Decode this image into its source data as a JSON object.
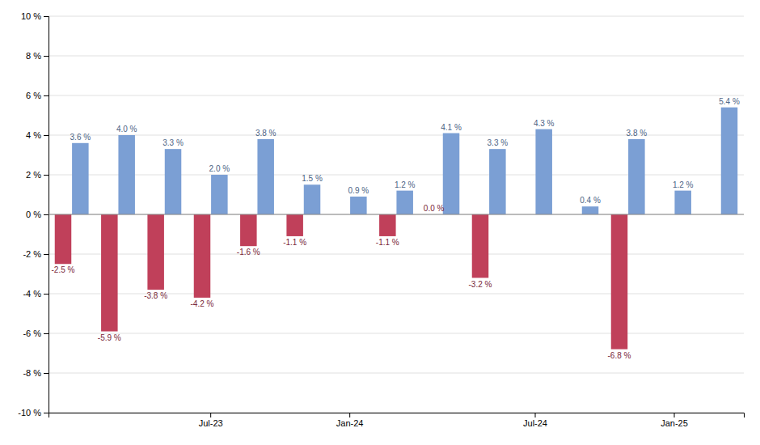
{
  "chart_data": {
    "type": "bar",
    "categories": [
      null,
      null,
      null,
      "Jul-23",
      null,
      null,
      "Jan-24",
      null,
      null,
      null,
      "Jul-24",
      null,
      null,
      "Jan-25",
      null
    ],
    "series": [
      {
        "color": "#c0405a",
        "values": [
          -2.5,
          -5.9,
          -3.8,
          -4.2,
          -1.6,
          -1.1,
          0.0,
          -1.1,
          0.0,
          -3.2,
          0.0,
          0.0,
          -6.8,
          0.0,
          0.0
        ],
        "value_labels": [
          "-2.5 %",
          "-5.9 %",
          "-3.8 %",
          "-4.2 %",
          "-1.6 %",
          "-1.1 %",
          null,
          "-1.1 %",
          "0.0 %",
          "-3.2 %",
          null,
          null,
          "-6.8 %",
          null,
          null
        ]
      },
      {
        "color": "#7b9fd4",
        "values": [
          3.6,
          4.0,
          3.3,
          2.0,
          3.8,
          1.5,
          0.9,
          1.2,
          4.1,
          3.3,
          4.3,
          0.4,
          3.8,
          1.2,
          5.4
        ],
        "value_labels": [
          "3.6 %",
          "4.0 %",
          "3.3 %",
          "2.0 %",
          "3.8 %",
          "1.5 %",
          "0.9 %",
          "1.2 %",
          "4.1 %",
          "3.3 %",
          "4.3 %",
          "0.4 %",
          "3.8 %",
          "1.2 %",
          "5.4 %"
        ]
      }
    ],
    "ylim": [
      -10,
      10
    ],
    "yticks": [
      {
        "value": -10,
        "label": "-10 %"
      },
      {
        "value": -8,
        "label": "-8 %"
      },
      {
        "value": -6,
        "label": "-6 %"
      },
      {
        "value": -4,
        "label": "-4 %"
      },
      {
        "value": -2,
        "label": "-2 %"
      },
      {
        "value": 0,
        "label": "0 %"
      },
      {
        "value": 2,
        "label": "2 %"
      },
      {
        "value": 4,
        "label": "4 %"
      },
      {
        "value": 6,
        "label": "6 %"
      },
      {
        "value": 8,
        "label": "8 %"
      },
      {
        "value": 10,
        "label": "10 %"
      }
    ],
    "grid": true,
    "data_labels": true
  }
}
